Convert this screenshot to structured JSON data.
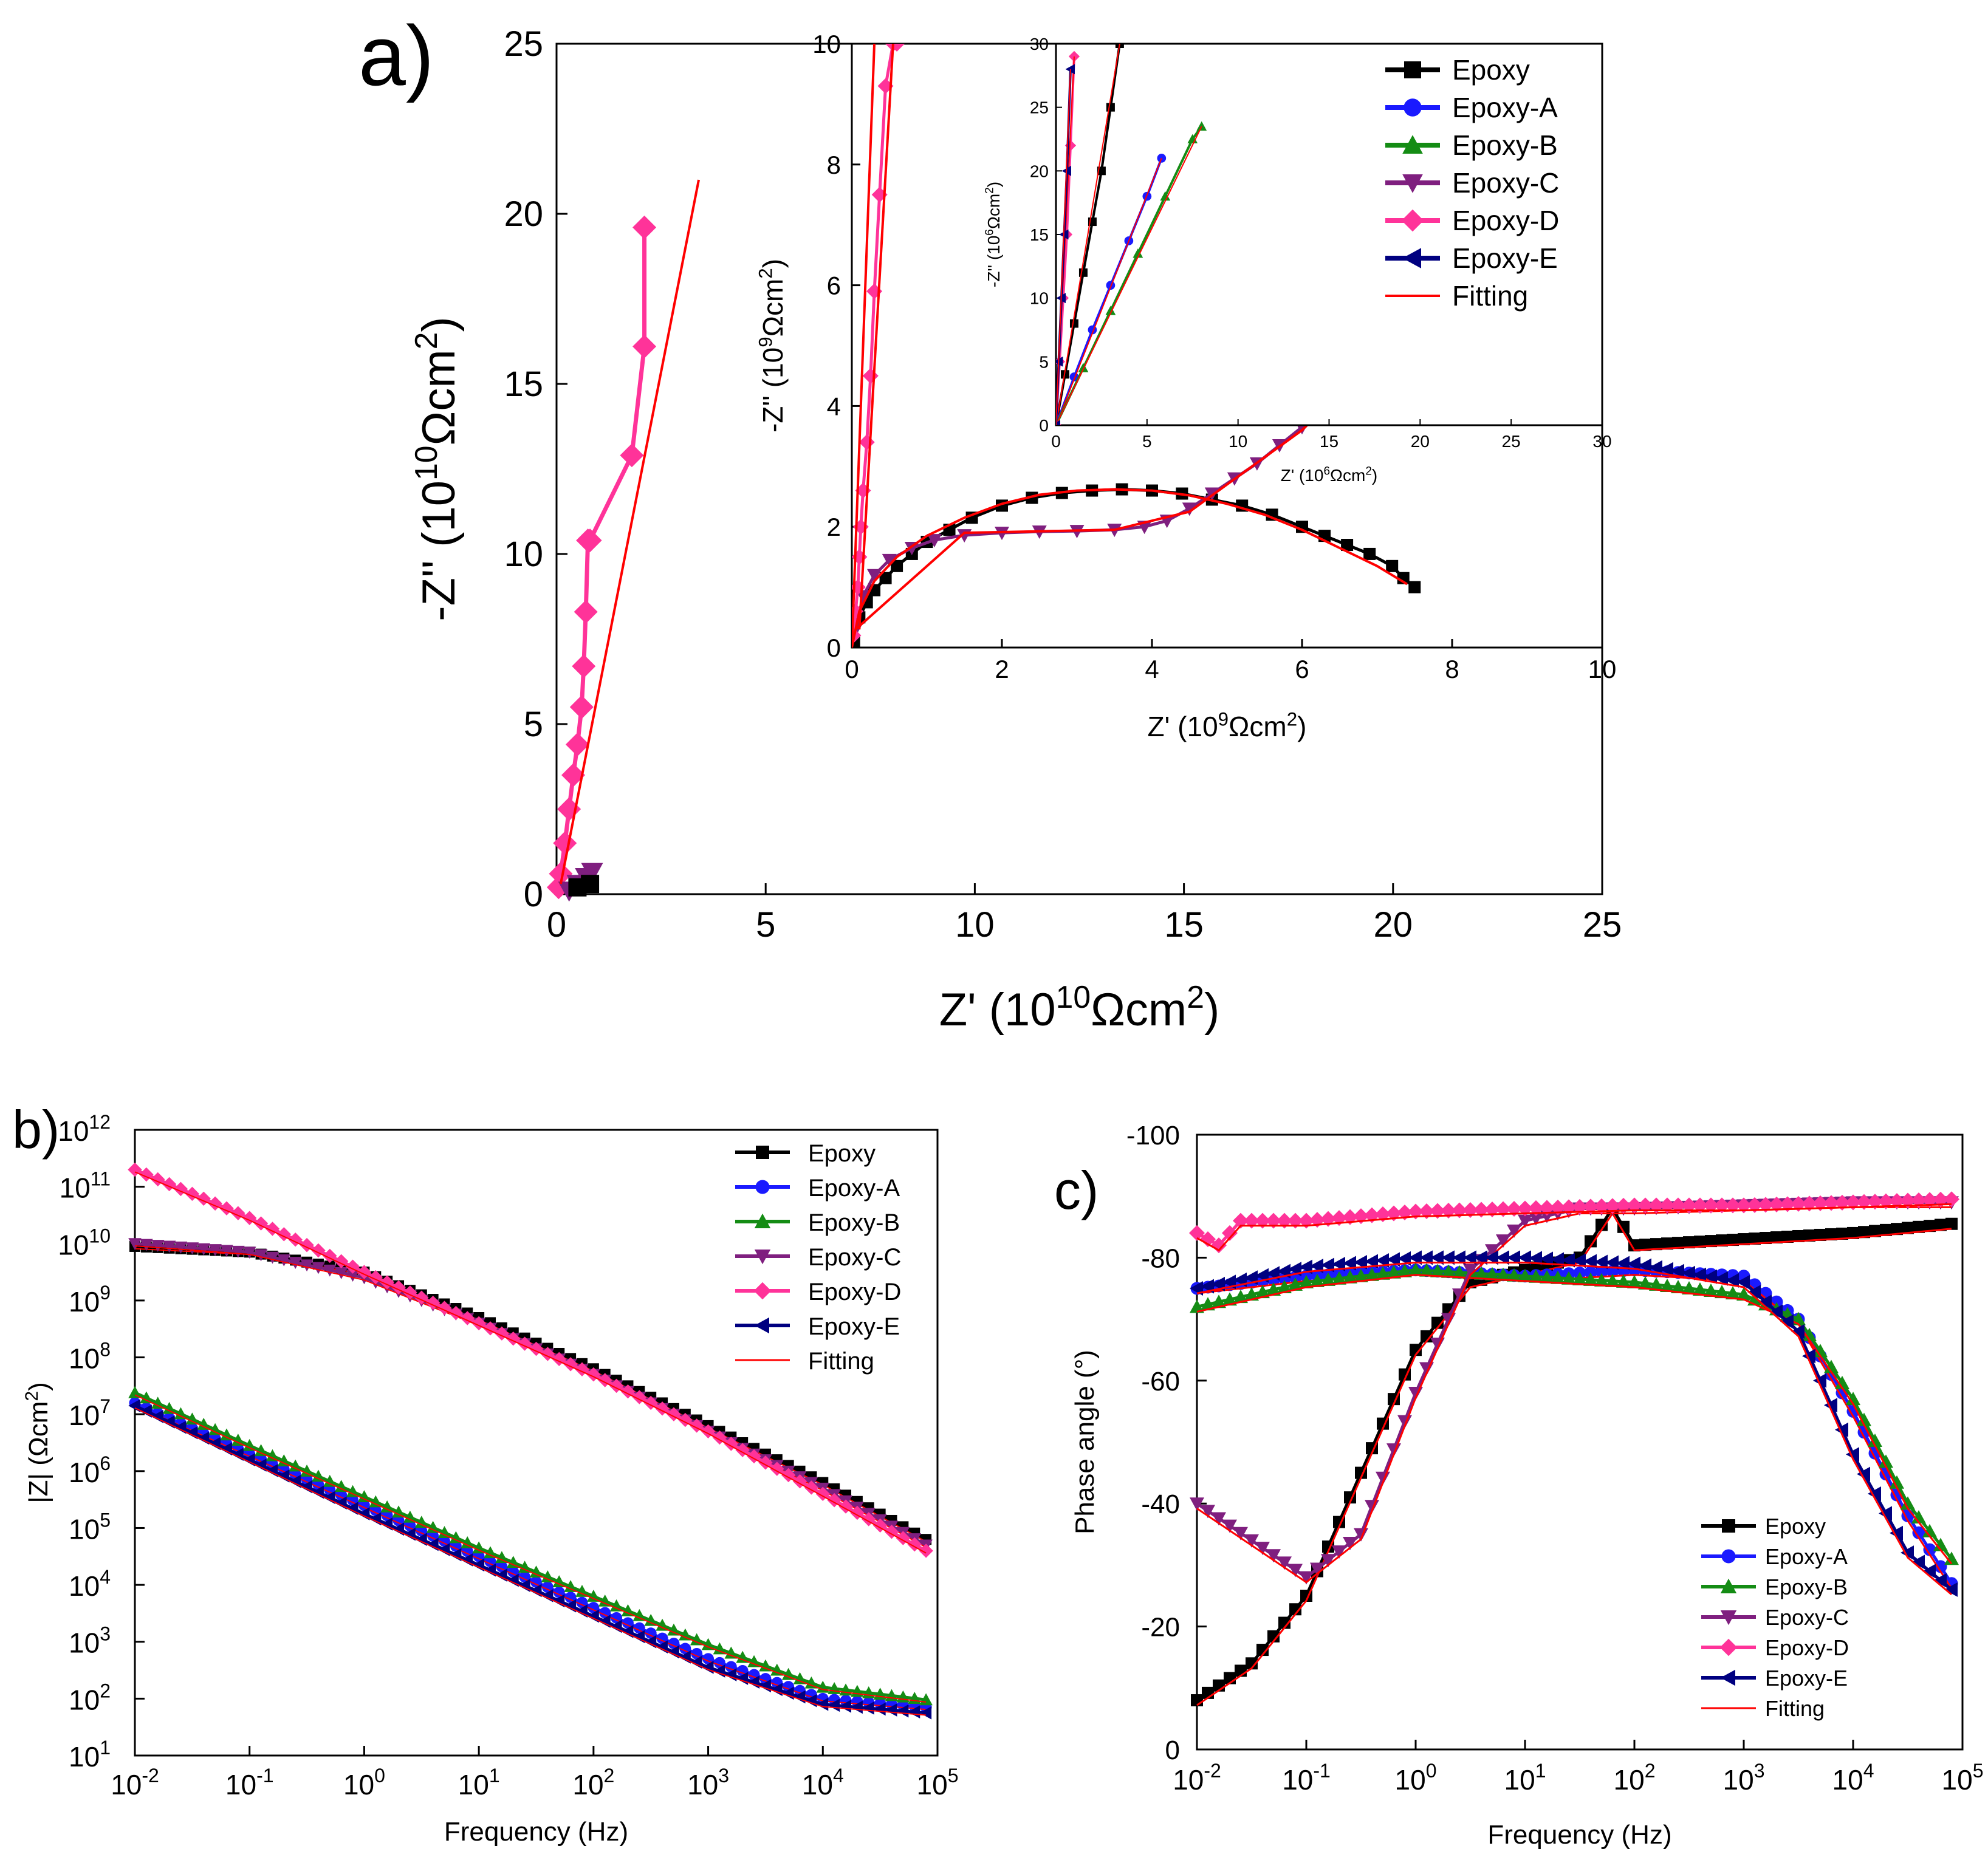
{
  "colors": {
    "Epoxy": "#000000",
    "Epoxy-A": "#1a1aff",
    "Epoxy-B": "#148c14",
    "Epoxy-C": "#7f1f7f",
    "Epoxy-D": "#ff3399",
    "Epoxy-E": "#000080",
    "Fitting": "#ff0000"
  },
  "legend": [
    "Epoxy",
    "Epoxy-A",
    "Epoxy-B",
    "Epoxy-C",
    "Epoxy-D",
    "Epoxy-E",
    "Fitting"
  ],
  "panels": {
    "a": {
      "label": "a)"
    },
    "b": {
      "label": "b)"
    },
    "c": {
      "label": "c)"
    }
  },
  "chart_data": [
    {
      "id": "a-main",
      "type": "scatter",
      "title": "",
      "xlabel_main": "Z' (10",
      "xlabel_sup": "10",
      "xlabel_tail": "Ωcm",
      "ylabel_main": "-Z'' (10",
      "ylabel_sup": "10",
      "ylabel_tail": "Ωcm",
      "unit_sup": "2",
      "xlim": [
        0,
        25
      ],
      "ylim": [
        0,
        25
      ],
      "xticks": [
        "0",
        "5",
        "10",
        "15",
        "20",
        "25"
      ],
      "yticks": [
        "0",
        "5",
        "10",
        "15",
        "20",
        "25"
      ],
      "series": [
        {
          "name": "Epoxy-D",
          "marker": "diamond",
          "x": [
            0.05,
            0.1,
            0.2,
            0.3,
            0.4,
            0.5,
            0.6,
            0.65,
            0.7,
            0.75,
            0.8,
            1.8,
            2.1,
            2.1
          ],
          "y": [
            0.2,
            0.6,
            1.5,
            2.5,
            3.5,
            4.4,
            5.5,
            6.7,
            8.3,
            10.4,
            10.4,
            12.9,
            16.1,
            19.6
          ]
        },
        {
          "name": "Epoxy-C",
          "marker": "tri_down",
          "x": [
            0.3,
            0.5,
            0.7,
            0.85
          ],
          "y": [
            0.1,
            0.3,
            0.5,
            0.65
          ]
        },
        {
          "name": "Epoxy",
          "marker": "square",
          "x": [
            0.5,
            0.8
          ],
          "y": [
            0.2,
            0.3
          ]
        },
        {
          "name": "Fitting",
          "marker": "line",
          "x": [
            0.1,
            3.4
          ],
          "y": [
            0.3,
            21
          ]
        }
      ]
    },
    {
      "id": "a-inset1",
      "type": "scatter",
      "xlabel_main": "Z' (10",
      "xlabel_sup": "9",
      "xlabel_tail": "Ωcm",
      "ylabel_main": "-Z'' (10",
      "ylabel_sup": "9",
      "ylabel_tail": "Ωcm",
      "unit_sup": "2",
      "xlim": [
        0,
        10
      ],
      "ylim": [
        0,
        10
      ],
      "xticks": [
        "0",
        "2",
        "4",
        "6",
        "8",
        "10"
      ],
      "yticks": [
        "0",
        "2",
        "4",
        "6",
        "8",
        "10"
      ],
      "series": [
        {
          "name": "Epoxy",
          "marker": "square",
          "x": [
            0.03,
            0.1,
            0.2,
            0.3,
            0.45,
            0.6,
            0.8,
            1.0,
            1.3,
            1.6,
            2.0,
            2.4,
            2.8,
            3.2,
            3.6,
            4.0,
            4.4,
            4.8,
            5.2,
            5.6,
            6.0,
            6.3,
            6.6,
            6.9,
            7.2,
            7.35,
            7.5
          ],
          "y": [
            0.1,
            0.5,
            0.75,
            0.95,
            1.15,
            1.35,
            1.55,
            1.75,
            1.95,
            2.15,
            2.35,
            2.48,
            2.56,
            2.6,
            2.62,
            2.6,
            2.55,
            2.45,
            2.35,
            2.2,
            2.0,
            1.85,
            1.7,
            1.55,
            1.35,
            1.15,
            1.0
          ]
        },
        {
          "name": "Epoxy-C",
          "marker": "tri_down",
          "x": [
            0.05,
            0.15,
            0.3,
            0.5,
            0.8,
            1.1,
            1.5,
            2.0,
            2.5,
            3.0,
            3.5,
            3.9,
            4.2,
            4.5,
            4.8,
            5.1,
            5.4,
            5.7,
            6.0,
            6.3,
            6.6,
            6.9,
            7.2,
            7.5,
            7.8,
            8.1
          ],
          "y": [
            0.3,
            0.85,
            1.2,
            1.45,
            1.65,
            1.78,
            1.86,
            1.9,
            1.92,
            1.93,
            1.95,
            2.0,
            2.1,
            2.3,
            2.55,
            2.8,
            3.05,
            3.35,
            3.65,
            3.95,
            4.25,
            4.6,
            4.95,
            5.3,
            5.7,
            6.1
          ]
        },
        {
          "name": "Epoxy-D",
          "marker": "diamond",
          "x": [
            0.02,
            0.05,
            0.08,
            0.1,
            0.12,
            0.15,
            0.2,
            0.25,
            0.3,
            0.37,
            0.45,
            0.55,
            0.6
          ],
          "y": [
            0.2,
            0.6,
            1.0,
            1.5,
            2.0,
            2.6,
            3.4,
            4.5,
            5.9,
            7.5,
            9.3,
            10.0,
            10.0
          ]
        },
        {
          "name": "Fitting",
          "marker": "line",
          "x": [
            0.0,
            0.1,
            0.3,
            0.6,
            1.0,
            1.5,
            2.0,
            2.5,
            3.0,
            3.5,
            4.0,
            4.5,
            5.0,
            5.5,
            6.0,
            6.5,
            7.0,
            7.4
          ],
          "y": [
            0.0,
            0.6,
            1.1,
            1.5,
            1.85,
            2.15,
            2.38,
            2.53,
            2.6,
            2.62,
            2.6,
            2.52,
            2.38,
            2.2,
            1.95,
            1.65,
            1.35,
            1.05
          ]
        }
      ]
    },
    {
      "id": "a-inset2",
      "type": "scatter",
      "xlabel_main": "Z' (10",
      "xlabel_sup": "6",
      "xlabel_tail": "Ωcm",
      "ylabel_main": "-Z'' (10",
      "ylabel_sup": "6",
      "ylabel_tail": "Ωcm",
      "unit_sup": "2",
      "xlim": [
        0,
        30
      ],
      "ylim": [
        0,
        30
      ],
      "xticks": [
        "0",
        "5",
        "10",
        "15",
        "20",
        "25",
        "30"
      ],
      "yticks": [
        "0",
        "5",
        "10",
        "15",
        "20",
        "25",
        "30"
      ],
      "series": [
        {
          "name": "Epoxy",
          "marker": "square",
          "x": [
            0,
            0.5,
            1.0,
            1.5,
            2.0,
            2.5,
            3.0,
            3.5
          ],
          "y": [
            0,
            4,
            8,
            12,
            16,
            20,
            25,
            30
          ]
        },
        {
          "name": "Epoxy-A",
          "marker": "circle",
          "x": [
            0,
            1.0,
            2.0,
            3.0,
            4.0,
            5.0,
            5.8
          ],
          "y": [
            0,
            3.8,
            7.5,
            11,
            14.5,
            18,
            21
          ]
        },
        {
          "name": "Epoxy-B",
          "marker": "triangle",
          "x": [
            0,
            1.5,
            3.0,
            4.5,
            6.0,
            7.5,
            8.0
          ],
          "y": [
            0,
            4.5,
            9,
            13.5,
            18,
            22.5,
            23.5
          ]
        },
        {
          "name": "Epoxy-D",
          "marker": "diamond",
          "x": [
            0,
            0.2,
            0.4,
            0.6,
            0.8,
            1.0
          ],
          "y": [
            0,
            5,
            10,
            15,
            22,
            29
          ]
        },
        {
          "name": "Epoxy-E",
          "marker": "tri_left",
          "x": [
            0,
            0.15,
            0.3,
            0.45,
            0.6,
            0.8
          ],
          "y": [
            0,
            5,
            10,
            15,
            20,
            28
          ]
        }
      ]
    },
    {
      "id": "b",
      "type": "line",
      "xlabel": "Frequency (Hz)",
      "ylabel_main": "|Z| (Ωcm",
      "ylabel_sup": "2",
      "xlim_log10": [
        -2,
        5
      ],
      "ylim_log10": [
        1,
        12
      ],
      "series": [
        {
          "name": "Epoxy",
          "marker": "square",
          "logZ_at_logf": [
            [
              -2,
              9.95
            ],
            [
              -1,
              9.85
            ],
            [
              0,
              9.5
            ],
            [
              1,
              8.7
            ],
            [
              2,
              7.8
            ],
            [
              3,
              6.8
            ],
            [
              4,
              5.8
            ],
            [
              4.9,
              4.8
            ]
          ]
        },
        {
          "name": "Epoxy-A",
          "marker": "circle",
          "logZ_at_logf": [
            [
              -2,
              7.2
            ],
            [
              -1,
              6.3
            ],
            [
              0,
              5.4
            ],
            [
              1,
              4.5
            ],
            [
              2,
              3.6
            ],
            [
              3,
              2.7
            ],
            [
              4,
              2.0
            ],
            [
              4.9,
              1.85
            ]
          ]
        },
        {
          "name": "Epoxy-B",
          "marker": "triangle",
          "logZ_at_logf": [
            [
              -2,
              7.38
            ],
            [
              -1,
              6.45
            ],
            [
              0,
              5.55
            ],
            [
              1,
              4.65
            ],
            [
              2,
              3.8
            ],
            [
              3,
              2.95
            ],
            [
              4,
              2.2
            ],
            [
              4.9,
              1.98
            ]
          ]
        },
        {
          "name": "Epoxy-C",
          "marker": "tri_down",
          "logZ_at_logf": [
            [
              -2,
              10.0
            ],
            [
              -1,
              9.85
            ],
            [
              0,
              9.4
            ],
            [
              1,
              8.6
            ],
            [
              2,
              7.7
            ],
            [
              3,
              6.7
            ],
            [
              4,
              5.7
            ],
            [
              4.9,
              4.7
            ]
          ]
        },
        {
          "name": "Epoxy-D",
          "marker": "diamond",
          "logZ_at_logf": [
            [
              -2,
              11.3
            ],
            [
              -1,
              10.45
            ],
            [
              0,
              9.5
            ],
            [
              1,
              8.6
            ],
            [
              2,
              7.7
            ],
            [
              3,
              6.7
            ],
            [
              4,
              5.6
            ],
            [
              4.9,
              4.6
            ]
          ]
        },
        {
          "name": "Epoxy-E",
          "marker": "tri_left",
          "logZ_at_logf": [
            [
              -2,
              7.15
            ],
            [
              -1,
              6.2
            ],
            [
              0,
              5.25
            ],
            [
              1,
              4.35
            ],
            [
              2,
              3.45
            ],
            [
              3,
              2.55
            ],
            [
              4,
              1.9
            ],
            [
              4.9,
              1.75
            ]
          ]
        }
      ]
    },
    {
      "id": "c",
      "type": "line",
      "xlabel": "Frequency (Hz)",
      "ylabel": "Phase angle (°)",
      "xlim_log10": [
        -2,
        5
      ],
      "ylim": [
        0,
        -100
      ],
      "yticks": [
        "0",
        "-20",
        "-40",
        "-60",
        "-80",
        "-100"
      ],
      "series": [
        {
          "name": "Epoxy",
          "marker": "square",
          "phase_at_logf": [
            [
              -2,
              -8
            ],
            [
              -1.5,
              -14
            ],
            [
              -1,
              -25
            ],
            [
              -0.5,
              -45
            ],
            [
              0,
              -65
            ],
            [
              0.5,
              -76
            ],
            [
              1,
              -78
            ],
            [
              1.5,
              -80
            ],
            [
              1.8,
              -88
            ],
            [
              2,
              -82
            ],
            [
              3,
              -83
            ],
            [
              4,
              -84
            ],
            [
              4.9,
              -85.5
            ]
          ]
        },
        {
          "name": "Epoxy-A",
          "marker": "circle",
          "phase_at_logf": [
            [
              -2,
              -75
            ],
            [
              -1,
              -77
            ],
            [
              0,
              -78
            ],
            [
              1,
              -77
            ],
            [
              2,
              -78
            ],
            [
              3,
              -77
            ],
            [
              3.5,
              -70
            ],
            [
              4,
              -55
            ],
            [
              4.5,
              -38
            ],
            [
              4.9,
              -27
            ]
          ]
        },
        {
          "name": "Epoxy-B",
          "marker": "triangle",
          "phase_at_logf": [
            [
              -2,
              -72
            ],
            [
              -1,
              -76
            ],
            [
              0,
              -78
            ],
            [
              1,
              -77
            ],
            [
              2,
              -76
            ],
            [
              3,
              -74
            ],
            [
              3.5,
              -70
            ],
            [
              4,
              -57
            ],
            [
              4.5,
              -40
            ],
            [
              4.9,
              -31
            ]
          ]
        },
        {
          "name": "Epoxy-C",
          "marker": "tri_down",
          "phase_at_logf": [
            [
              -2,
              -40
            ],
            [
              -1.5,
              -34
            ],
            [
              -1,
              -28
            ],
            [
              -0.5,
              -35
            ],
            [
              0,
              -58
            ],
            [
              0.5,
              -78
            ],
            [
              1,
              -86
            ],
            [
              1.5,
              -88
            ],
            [
              2,
              -88
            ],
            [
              3,
              -88.5
            ],
            [
              4,
              -89
            ],
            [
              4.9,
              -89
            ]
          ]
        },
        {
          "name": "Epoxy-D",
          "marker": "diamond",
          "phase_at_logf": [
            [
              -2,
              -84
            ],
            [
              -1.8,
              -82
            ],
            [
              -1.6,
              -86
            ],
            [
              -1,
              -86
            ],
            [
              0,
              -87.5
            ],
            [
              1,
              -88
            ],
            [
              2,
              -88.5
            ],
            [
              3,
              -88.5
            ],
            [
              4,
              -89
            ],
            [
              4.9,
              -89.5
            ]
          ]
        },
        {
          "name": "Epoxy-E",
          "marker": "tri_left",
          "phase_at_logf": [
            [
              -2,
              -75
            ],
            [
              -1,
              -78.5
            ],
            [
              0,
              -80
            ],
            [
              1,
              -80
            ],
            [
              2,
              -79
            ],
            [
              3,
              -76
            ],
            [
              3.5,
              -68
            ],
            [
              4,
              -48
            ],
            [
              4.5,
              -32
            ],
            [
              4.9,
              -26
            ]
          ]
        }
      ]
    }
  ]
}
